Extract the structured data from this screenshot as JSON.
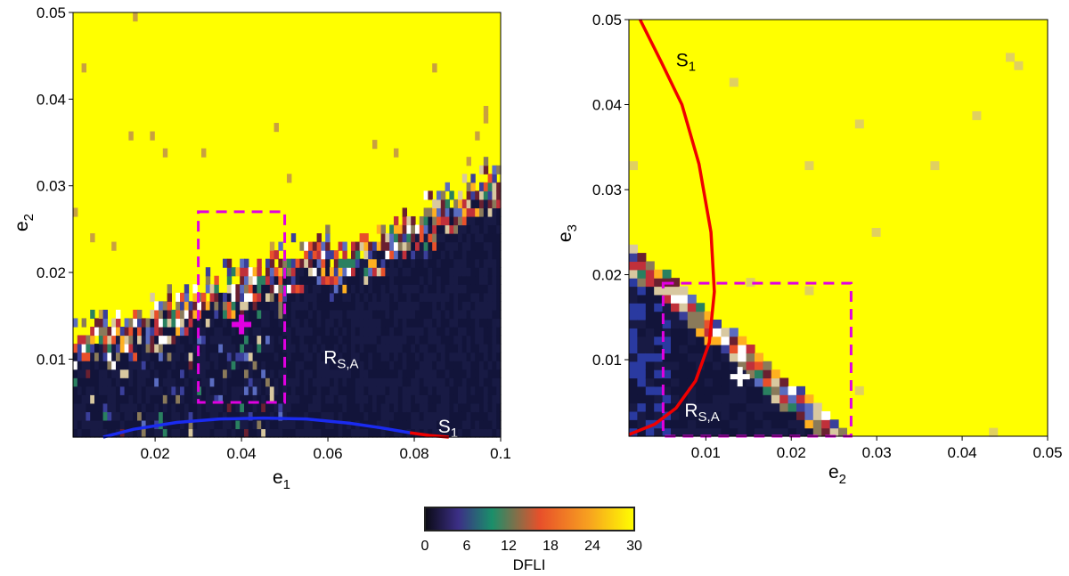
{
  "chart_data": [
    {
      "type": "heatmap",
      "xlabel": "e",
      "xlabel_sub": "1",
      "ylabel": "e",
      "ylabel_sub": "2",
      "xlim": [
        0.001,
        0.1
      ],
      "ylim": [
        0.001,
        0.05
      ],
      "xticks": [
        0.02,
        0.04,
        0.06,
        0.08,
        0.1
      ],
      "xtick_labels": [
        "0.02",
        "0.04",
        "0.06",
        "0.08",
        "0.1"
      ],
      "yticks": [
        0.01,
        0.02,
        0.03,
        0.04,
        0.05
      ],
      "ytick_labels": [
        "0.01",
        "0.02",
        "0.03",
        "0.04",
        "0.05"
      ],
      "color_scale": "DFLI 0-30 (dark navy = 0 regular, yellow = 30 chaotic)",
      "regions": "regular (low DFLI) region below a ragged chaotic boundary rising from e2~0.012 at e1~0.005 to e2~0.031 at e1~0.1; yellow chaotic above",
      "marker": {
        "x": 0.04,
        "y": 0.014,
        "symbol": "+",
        "color": "#e100e1"
      },
      "box": {
        "x": [
          0.03,
          0.05
        ],
        "y": [
          0.005,
          0.027
        ],
        "style": "dashed",
        "color": "#e100e1"
      },
      "region_label": {
        "text": "R",
        "sub": "S,A",
        "x": 0.059,
        "y": 0.0095,
        "color": "#ffffff"
      },
      "curve_label": {
        "text": "S",
        "sub": "1",
        "x": 0.0855,
        "y": 0.0015,
        "color": "#ffffff"
      },
      "curves": [
        {
          "color": "#1a2bf0",
          "points": [
            [
              0.008,
              0.001
            ],
            [
              0.015,
              0.0019
            ],
            [
              0.025,
              0.0027
            ],
            [
              0.035,
              0.0031
            ],
            [
              0.045,
              0.0032
            ],
            [
              0.055,
              0.0031
            ],
            [
              0.065,
              0.0026
            ],
            [
              0.072,
              0.0021
            ],
            [
              0.079,
              0.0015
            ]
          ]
        },
        {
          "color": "#f00000",
          "points": [
            [
              0.079,
              0.0015
            ],
            [
              0.0835,
              0.0012
            ],
            [
              0.088,
              0.001
            ]
          ]
        }
      ]
    },
    {
      "type": "heatmap",
      "xlabel": "e",
      "xlabel_sub": "2",
      "ylabel": "e",
      "ylabel_sub": "3",
      "xlim": [
        0.001,
        0.05
      ],
      "ylim": [
        0.001,
        0.05
      ],
      "xticks": [
        0.01,
        0.02,
        0.03,
        0.04,
        0.05
      ],
      "xtick_labels": [
        "0.01",
        "0.02",
        "0.03",
        "0.04",
        "0.05"
      ],
      "yticks": [
        0.01,
        0.02,
        0.03,
        0.04,
        0.05
      ],
      "ytick_labels": [
        "0.01",
        "0.02",
        "0.03",
        "0.04",
        "0.05"
      ],
      "color_scale": "DFLI 0-30",
      "regions": "regular (low DFLI) wedge in lower-left bounded by a diagonal from (0.001, 0.023) to (0.026, 0.001); yellow chaotic elsewhere",
      "marker": {
        "x": 0.014,
        "y": 0.008,
        "symbol": "+",
        "color": "#ffffff"
      },
      "box": {
        "x": [
          0.005,
          0.027
        ],
        "y": [
          0.001,
          0.019
        ],
        "style": "dashed",
        "color": "#e100e1"
      },
      "region_label": {
        "text": "R",
        "sub": "S,A",
        "x": 0.0075,
        "y": 0.0033,
        "color": "#ffffff"
      },
      "curve_label": {
        "text": "S",
        "sub": "1",
        "x": 0.0065,
        "y": 0.0445,
        "color": "#000000"
      },
      "curves": [
        {
          "color": "#f00000",
          "points": [
            [
              0.0023,
              0.05
            ],
            [
              0.0048,
              0.045
            ],
            [
              0.0072,
              0.04
            ],
            [
              0.0092,
              0.033
            ],
            [
              0.0106,
              0.025
            ],
            [
              0.011,
              0.018
            ],
            [
              0.0104,
              0.012
            ],
            [
              0.0088,
              0.0075
            ],
            [
              0.0065,
              0.0043
            ],
            [
              0.004,
              0.0024
            ],
            [
              0.001,
              0.0012
            ]
          ]
        }
      ]
    }
  ],
  "colorbar": {
    "label": "DFLI",
    "ticks": [
      0,
      6,
      12,
      18,
      24,
      30
    ],
    "tick_labels": [
      "0",
      "6",
      "12",
      "18",
      "24",
      "30"
    ],
    "stops": [
      "#0a0a14",
      "#3c2f86",
      "#1a8f6a",
      "#e8502a",
      "#f7a020",
      "#ffff00"
    ]
  }
}
